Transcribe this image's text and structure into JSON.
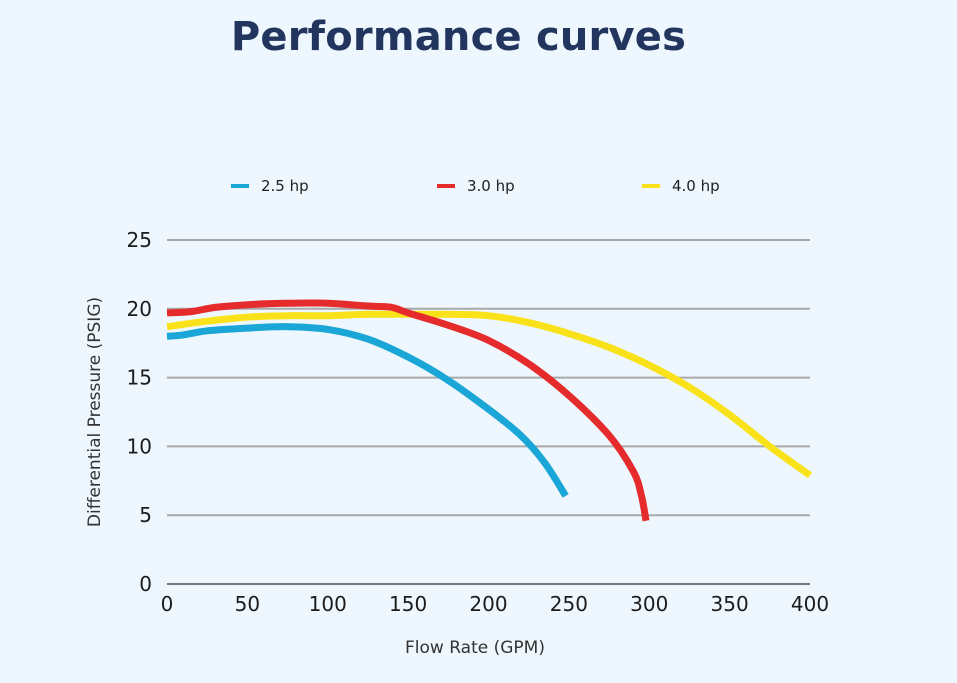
{
  "chart_data": {
    "type": "line",
    "title": "Performance curves",
    "xlabel": "Flow Rate (GPM)",
    "ylabel": "Differential Pressure (PSIG)",
    "xlim": [
      0,
      400
    ],
    "ylim": [
      0,
      25
    ],
    "xticks": [
      "0",
      "50",
      "100",
      "150",
      "200",
      "250",
      "300",
      "350",
      "400"
    ],
    "yticks": [
      "0",
      "5",
      "10",
      "15",
      "20",
      "25"
    ],
    "grid": "horizontal",
    "legend_position": "top",
    "series": [
      {
        "name": "2.5 hp",
        "color": "#1aa6d6",
        "x": [
          0,
          10,
          25,
          50,
          75,
          100,
          125,
          150,
          175,
          200,
          220,
          235,
          248
        ],
        "y": [
          18,
          18.1,
          18.4,
          18.6,
          18.7,
          18.5,
          17.8,
          16.5,
          14.8,
          12.7,
          10.8,
          8.8,
          6.4
        ]
      },
      {
        "name": "3.0 hp",
        "color": "#e52b2b",
        "x": [
          0,
          15,
          30,
          50,
          75,
          100,
          125,
          140,
          150,
          175,
          200,
          225,
          250,
          275,
          290,
          295,
          298
        ],
        "y": [
          19.7,
          19.8,
          20.1,
          20.3,
          20.4,
          20.4,
          20.2,
          20.1,
          19.7,
          18.8,
          17.7,
          16,
          13.7,
          10.8,
          8.2,
          6.5,
          4.6
        ]
      },
      {
        "name": "4.0 hp",
        "color": "#f9e21a",
        "x": [
          0,
          25,
          50,
          75,
          100,
          125,
          150,
          175,
          200,
          225,
          250,
          275,
          300,
          325,
          350,
          375,
          400
        ],
        "y": [
          18.7,
          19.1,
          19.4,
          19.5,
          19.5,
          19.6,
          19.6,
          19.6,
          19.5,
          19,
          18.2,
          17.2,
          15.9,
          14.3,
          12.3,
          10,
          7.9
        ]
      }
    ]
  }
}
